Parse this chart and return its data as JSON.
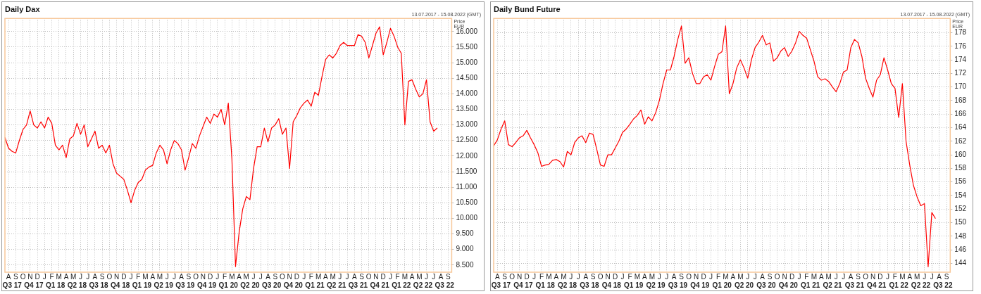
{
  "chart_data": [
    {
      "type": "line",
      "title": "Daily Dax",
      "ylabel": "Price EUR",
      "annotations": [
        "13.07.2017 - 15.08.2022 (GMT)"
      ],
      "grid": true,
      "marker": "none",
      "line_style": "solid",
      "categories": [
        null,
        "A",
        "Q3 17",
        "S",
        null,
        "O",
        null,
        "N",
        "Q4 17",
        "D",
        null,
        "J",
        null,
        "F",
        "Q1 18",
        "M",
        null,
        "A",
        null,
        "M",
        "Q2 18",
        "J",
        null,
        "J",
        null,
        "A",
        "Q3 18",
        "S",
        null,
        "O",
        null,
        "N",
        "Q4 18",
        "D",
        null,
        "J",
        null,
        "F",
        "Q1 19",
        "M",
        null,
        "A",
        null,
        "M",
        "Q2 19",
        "J",
        null,
        "J",
        null,
        "A",
        "Q3 19",
        "S",
        null,
        "O",
        null,
        "N",
        "Q4 19",
        "D",
        null,
        "J",
        null,
        "F",
        "Q1 20",
        "M",
        null,
        "A",
        null,
        "M",
        "Q2 20",
        "J",
        null,
        "J",
        null,
        "A",
        "Q3 20",
        "S",
        null,
        "O",
        null,
        "N",
        "Q4 20",
        "D",
        null,
        "J",
        null,
        "F",
        "Q1 21",
        "M",
        null,
        "A",
        null,
        "M",
        "Q2 21",
        "J",
        null,
        "J",
        null,
        "A",
        "Q3 21",
        "S",
        null,
        "O",
        null,
        "N",
        "Q4 21",
        "D",
        null,
        "J",
        null,
        "F",
        "Q1 22",
        "M",
        null,
        "A",
        null,
        "M",
        "Q2 22",
        "J",
        null,
        "J",
        null,
        "A",
        "Q3 22",
        "S",
        null
      ],
      "series": [
        {
          "color": "#ff0000",
          "values": [
            12600,
            12250,
            12150,
            12100,
            12500,
            12850,
            13000,
            13450,
            13000,
            12900,
            13100,
            12900,
            13250,
            13050,
            12350,
            12200,
            12350,
            11950,
            12550,
            12650,
            13050,
            12700,
            13000,
            12300,
            12550,
            12800,
            12250,
            12350,
            12100,
            12350,
            11750,
            11450,
            11350,
            11250,
            10900,
            10500,
            10900,
            11150,
            11250,
            11550,
            11650,
            11700,
            12100,
            12350,
            12200,
            11750,
            12200,
            12500,
            12400,
            12200,
            11550,
            11950,
            12400,
            12250,
            12650,
            12950,
            13250,
            13050,
            13350,
            13250,
            13500,
            13000,
            13700,
            11900,
            8450,
            9550,
            10300,
            10700,
            10600,
            11600,
            12300,
            12300,
            12900,
            12450,
            12900,
            13000,
            13200,
            12700,
            12900,
            11600,
            13100,
            13300,
            13550,
            13700,
            13800,
            13600,
            14050,
            13950,
            14550,
            15100,
            15250,
            15150,
            15300,
            15550,
            15650,
            15550,
            15550,
            15550,
            15900,
            15850,
            15650,
            15150,
            15550,
            15950,
            16150,
            15250,
            15650,
            16100,
            15850,
            15500,
            15300,
            13000,
            14400,
            14450,
            14150,
            13900,
            14000,
            14450,
            13100,
            12800,
            12900,
            null,
            null,
            null,
            null
          ]
        }
      ],
      "ylim": [
        8270,
        16420
      ],
      "yticks": [
        {
          "value": 8500,
          "label": "8.500"
        },
        {
          "value": 9000,
          "label": "9.000"
        },
        {
          "value": 9500,
          "label": "9.500"
        },
        {
          "value": 10000,
          "label": "10.000"
        },
        {
          "value": 10500,
          "label": "10.500"
        },
        {
          "value": 11000,
          "label": "11.000"
        },
        {
          "value": 11500,
          "label": "11.500"
        },
        {
          "value": 12000,
          "label": "12.000"
        },
        {
          "value": 12500,
          "label": "12.500"
        },
        {
          "value": 13000,
          "label": "13.000"
        },
        {
          "value": 13500,
          "label": "13.500"
        },
        {
          "value": 14000,
          "label": "14.000"
        },
        {
          "value": 14500,
          "label": "14.500"
        },
        {
          "value": 15000,
          "label": "15.000"
        },
        {
          "value": 15500,
          "label": "15.500"
        },
        {
          "value": 16000,
          "label": "16.000"
        }
      ]
    },
    {
      "type": "line",
      "title": "Daily Bund Future",
      "ylabel": "Price EUR",
      "annotations": [
        "13.07.2017 - 15.08.2022 (GMT)"
      ],
      "grid": true,
      "marker": "none",
      "line_style": "solid",
      "categories": [
        null,
        "A",
        "Q3 17",
        "S",
        null,
        "O",
        null,
        "N",
        "Q4 17",
        "D",
        null,
        "J",
        null,
        "F",
        "Q1 18",
        "M",
        null,
        "A",
        null,
        "M",
        "Q2 18",
        "J",
        null,
        "J",
        null,
        "A",
        "Q3 18",
        "S",
        null,
        "O",
        null,
        "N",
        "Q4 18",
        "D",
        null,
        "J",
        null,
        "F",
        "Q1 19",
        "M",
        null,
        "A",
        null,
        "M",
        "Q2 19",
        "J",
        null,
        "J",
        null,
        "A",
        "Q3 19",
        "S",
        null,
        "O",
        null,
        "N",
        "Q4 19",
        "D",
        null,
        "J",
        null,
        "F",
        "Q1 20",
        "M",
        null,
        "A",
        null,
        "M",
        "Q2 20",
        "J",
        null,
        "J",
        null,
        "A",
        "Q3 20",
        "S",
        null,
        "O",
        null,
        "N",
        "Q4 20",
        "D",
        null,
        "J",
        null,
        "F",
        "Q1 21",
        "M",
        null,
        "A",
        null,
        "M",
        "Q2 21",
        "J",
        null,
        "J",
        null,
        "A",
        "Q3 21",
        "S",
        null,
        "O",
        null,
        "N",
        "Q4 21",
        "D",
        null,
        "J",
        null,
        "F",
        "Q1 22",
        "M",
        null,
        "A",
        null,
        "M",
        "Q2 22",
        "J",
        null,
        "J",
        null,
        "A",
        "Q3 22",
        "S",
        null
      ],
      "series": [
        {
          "color": "#ff0000",
          "values": [
            161.3,
            162.2,
            163.8,
            165.0,
            161.5,
            161.2,
            161.8,
            162.5,
            162.8,
            163.6,
            162.5,
            161.5,
            160.3,
            158.3,
            158.5,
            158.6,
            159.2,
            159.3,
            159.0,
            158.2,
            160.5,
            160.0,
            161.8,
            162.5,
            162.8,
            161.8,
            163.2,
            163.0,
            160.8,
            158.5,
            158.3,
            160.0,
            160.0,
            161.0,
            162.0,
            163.3,
            163.8,
            164.5,
            165.3,
            165.8,
            166.6,
            164.5,
            165.6,
            165.0,
            166.2,
            168.0,
            170.5,
            172.5,
            172.5,
            174.5,
            177.0,
            179.0,
            173.5,
            174.3,
            172.0,
            170.5,
            170.5,
            171.5,
            171.8,
            171.0,
            173.0,
            174.8,
            175.2,
            179.0,
            169.0,
            170.5,
            172.8,
            174.0,
            172.8,
            171.3,
            174.0,
            175.8,
            176.6,
            177.6,
            176.2,
            176.5,
            173.8,
            174.3,
            175.3,
            175.8,
            174.5,
            175.3,
            176.5,
            178.2,
            177.6,
            177.2,
            175.5,
            173.8,
            171.5,
            171.0,
            171.2,
            170.8,
            170.0,
            169.3,
            170.5,
            172.2,
            172.5,
            175.8,
            177.0,
            176.5,
            174.5,
            171.3,
            169.8,
            168.5,
            171.0,
            171.8,
            174.3,
            172.5,
            170.5,
            169.8,
            165.5,
            170.5,
            162.0,
            158.5,
            155.5,
            153.8,
            152.5,
            152.8,
            143.5,
            151.5,
            150.6,
            null,
            null,
            null,
            null
          ]
        }
      ],
      "ylim": [
        142.7,
        180.1
      ],
      "yticks": [
        144,
        146,
        148,
        150,
        152,
        154,
        156,
        158,
        160,
        162,
        164,
        166,
        168,
        170,
        172,
        174,
        176,
        178
      ]
    }
  ]
}
